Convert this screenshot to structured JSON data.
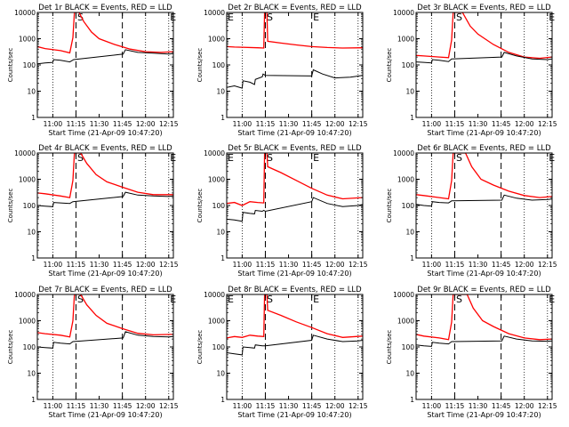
{
  "chart_data": {
    "type": "line",
    "shared": {
      "xlabel": "Start Time (21-Apr-09 10:47:20)",
      "ylabel": "Counts/sec",
      "xticks": [
        "11:00",
        "11:15",
        "11:30",
        "11:45",
        "12:00",
        "12:15"
      ],
      "yticks": [
        "1",
        "10",
        "100",
        "1000",
        "10000"
      ],
      "ylim": [
        1,
        10000
      ],
      "yscale": "log",
      "xlim_minutes": [
        -10,
        78
      ],
      "vertical_lines": [
        {
          "t": 0,
          "style": "dotted"
        },
        {
          "t": 15,
          "style": "dashed",
          "label": "S"
        },
        {
          "t": 45,
          "style": "dashed",
          "label": "E"
        },
        {
          "t": 60,
          "style": "dotted"
        },
        {
          "t": 75,
          "style": "dotted"
        }
      ],
      "colors": {
        "events": "#000000",
        "lld": "#ff0000"
      }
    },
    "panels": [
      {
        "title": "Det 1r BLACK = Events, RED = LLD",
        "markers": [
          "S",
          "E"
        ],
        "events": [
          {
            "t": -10,
            "v": 110
          },
          {
            "t": -5,
            "v": 120
          },
          {
            "t": 0,
            "v": 125
          },
          {
            "t": 0.5,
            "v": 160
          },
          {
            "t": 5,
            "v": 150
          },
          {
            "t": 11,
            "v": 130
          },
          {
            "t": 13.5,
            "v": 160
          },
          {
            "t": 45.5,
            "v": 260
          },
          {
            "t": 47,
            "v": 380
          },
          {
            "t": 55,
            "v": 300
          },
          {
            "t": 65,
            "v": 280
          },
          {
            "t": 75,
            "v": 260
          },
          {
            "t": 78,
            "v": 270
          }
        ],
        "lld": [
          {
            "t": -10,
            "v": 500
          },
          {
            "t": -5,
            "v": 420
          },
          {
            "t": 5,
            "v": 350
          },
          {
            "t": 11,
            "v": 290
          },
          {
            "t": 13,
            "v": 1100
          },
          {
            "t": 14,
            "v": 10000
          },
          {
            "t": 17,
            "v": 10000
          },
          {
            "t": 20,
            "v": 4500
          },
          {
            "t": 25,
            "v": 1800
          },
          {
            "t": 30,
            "v": 1000
          },
          {
            "t": 40,
            "v": 600
          },
          {
            "t": 50,
            "v": 400
          },
          {
            "t": 60,
            "v": 320
          },
          {
            "t": 70,
            "v": 300
          },
          {
            "t": 78,
            "v": 320
          }
        ]
      },
      {
        "title": "Det 2r BLACK = Events, RED = LLD",
        "markers": [
          "E",
          "S",
          "E"
        ],
        "events": [
          {
            "t": -10,
            "v": 14
          },
          {
            "t": -5,
            "v": 16
          },
          {
            "t": 0,
            "v": 13
          },
          {
            "t": 0.5,
            "v": 25
          },
          {
            "t": 5,
            "v": 22
          },
          {
            "t": 8,
            "v": 18
          },
          {
            "t": 8.5,
            "v": 28
          },
          {
            "t": 13,
            "v": 35
          },
          {
            "t": 13.5,
            "v": 45
          },
          {
            "t": 15,
            "v": 40
          },
          {
            "t": 45,
            "v": 38
          },
          {
            "t": 46,
            "v": 65
          },
          {
            "t": 52,
            "v": 45
          },
          {
            "t": 60,
            "v": 32
          },
          {
            "t": 70,
            "v": 34
          },
          {
            "t": 78,
            "v": 40
          }
        ],
        "lld": [
          {
            "t": -10,
            "v": 500
          },
          {
            "t": -5,
            "v": 480
          },
          {
            "t": 10,
            "v": 450
          },
          {
            "t": 14,
            "v": 440
          },
          {
            "t": 14.5,
            "v": 10000
          },
          {
            "t": 16,
            "v": 10000
          },
          {
            "t": 16.5,
            "v": 800
          },
          {
            "t": 25,
            "v": 680
          },
          {
            "t": 35,
            "v": 580
          },
          {
            "t": 45,
            "v": 500
          },
          {
            "t": 55,
            "v": 460
          },
          {
            "t": 65,
            "v": 440
          },
          {
            "t": 78,
            "v": 450
          }
        ]
      },
      {
        "title": "Det 3r BLACK = Events, RED = LLD",
        "markers": [
          "S",
          "E"
        ],
        "events": [
          {
            "t": -10,
            "v": 130
          },
          {
            "t": -5,
            "v": 125
          },
          {
            "t": 0,
            "v": 120
          },
          {
            "t": 0.5,
            "v": 160
          },
          {
            "t": 5,
            "v": 150
          },
          {
            "t": 11,
            "v": 135
          },
          {
            "t": 13,
            "v": 170
          },
          {
            "t": 45.5,
            "v": 200
          },
          {
            "t": 47,
            "v": 300
          },
          {
            "t": 55,
            "v": 220
          },
          {
            "t": 65,
            "v": 170
          },
          {
            "t": 75,
            "v": 160
          },
          {
            "t": 78,
            "v": 170
          }
        ],
        "lld": [
          {
            "t": -10,
            "v": 230
          },
          {
            "t": -5,
            "v": 220
          },
          {
            "t": 5,
            "v": 200
          },
          {
            "t": 11,
            "v": 190
          },
          {
            "t": 13,
            "v": 900
          },
          {
            "t": 14,
            "v": 10000
          },
          {
            "t": 20,
            "v": 10000
          },
          {
            "t": 25,
            "v": 3000
          },
          {
            "t": 30,
            "v": 1500
          },
          {
            "t": 40,
            "v": 600
          },
          {
            "t": 50,
            "v": 300
          },
          {
            "t": 60,
            "v": 200
          },
          {
            "t": 70,
            "v": 180
          },
          {
            "t": 78,
            "v": 200
          }
        ]
      },
      {
        "title": "Det 4r BLACK = Events, RED = LLD",
        "markers": [
          "S",
          "E"
        ],
        "events": [
          {
            "t": -10,
            "v": 100
          },
          {
            "t": -5,
            "v": 95
          },
          {
            "t": 0,
            "v": 90
          },
          {
            "t": 0.5,
            "v": 130
          },
          {
            "t": 5,
            "v": 125
          },
          {
            "t": 11,
            "v": 120
          },
          {
            "t": 13,
            "v": 140
          },
          {
            "t": 45.5,
            "v": 220
          },
          {
            "t": 47,
            "v": 320
          },
          {
            "t": 55,
            "v": 250
          },
          {
            "t": 65,
            "v": 230
          },
          {
            "t": 75,
            "v": 220
          },
          {
            "t": 78,
            "v": 230
          }
        ],
        "lld": [
          {
            "t": -10,
            "v": 300
          },
          {
            "t": -5,
            "v": 280
          },
          {
            "t": 5,
            "v": 230
          },
          {
            "t": 11,
            "v": 200
          },
          {
            "t": 13,
            "v": 900
          },
          {
            "t": 14,
            "v": 10000
          },
          {
            "t": 18,
            "v": 10000
          },
          {
            "t": 22,
            "v": 4000
          },
          {
            "t": 28,
            "v": 1500
          },
          {
            "t": 35,
            "v": 800
          },
          {
            "t": 45,
            "v": 500
          },
          {
            "t": 55,
            "v": 320
          },
          {
            "t": 65,
            "v": 260
          },
          {
            "t": 78,
            "v": 260
          }
        ]
      },
      {
        "title": "Det 5r BLACK = Events, RED = LLD",
        "markers": [
          "E",
          "S",
          "E"
        ],
        "events": [
          {
            "t": -10,
            "v": 30
          },
          {
            "t": -5,
            "v": 28
          },
          {
            "t": 0,
            "v": 25
          },
          {
            "t": 0.5,
            "v": 55
          },
          {
            "t": 5,
            "v": 50
          },
          {
            "t": 8,
            "v": 48
          },
          {
            "t": 8.5,
            "v": 65
          },
          {
            "t": 13,
            "v": 60
          },
          {
            "t": 14,
            "v": 65
          },
          {
            "t": 15,
            "v": 60
          },
          {
            "t": 45,
            "v": 140
          },
          {
            "t": 46,
            "v": 200
          },
          {
            "t": 55,
            "v": 120
          },
          {
            "t": 65,
            "v": 90
          },
          {
            "t": 75,
            "v": 100
          },
          {
            "t": 78,
            "v": 110
          }
        ],
        "lld": [
          {
            "t": -10,
            "v": 120
          },
          {
            "t": -5,
            "v": 130
          },
          {
            "t": 0,
            "v": 100
          },
          {
            "t": 5,
            "v": 140
          },
          {
            "t": 10,
            "v": 130
          },
          {
            "t": 14,
            "v": 125
          },
          {
            "t": 14.5,
            "v": 10000
          },
          {
            "t": 16,
            "v": 10000
          },
          {
            "t": 16.5,
            "v": 3000
          },
          {
            "t": 25,
            "v": 1800
          },
          {
            "t": 35,
            "v": 900
          },
          {
            "t": 45,
            "v": 450
          },
          {
            "t": 55,
            "v": 250
          },
          {
            "t": 65,
            "v": 180
          },
          {
            "t": 78,
            "v": 200
          }
        ]
      },
      {
        "title": "Det 6r BLACK = Events, RED = LLD",
        "markers": [
          "S",
          "E"
        ],
        "events": [
          {
            "t": -10,
            "v": 110
          },
          {
            "t": -5,
            "v": 100
          },
          {
            "t": 0,
            "v": 95
          },
          {
            "t": 0.5,
            "v": 140
          },
          {
            "t": 5,
            "v": 130
          },
          {
            "t": 11,
            "v": 125
          },
          {
            "t": 13,
            "v": 150
          },
          {
            "t": 45.5,
            "v": 160
          },
          {
            "t": 47,
            "v": 250
          },
          {
            "t": 55,
            "v": 190
          },
          {
            "t": 65,
            "v": 160
          },
          {
            "t": 75,
            "v": 170
          },
          {
            "t": 78,
            "v": 175
          }
        ],
        "lld": [
          {
            "t": -10,
            "v": 260
          },
          {
            "t": -5,
            "v": 240
          },
          {
            "t": 5,
            "v": 200
          },
          {
            "t": 11,
            "v": 180
          },
          {
            "t": 13,
            "v": 900
          },
          {
            "t": 14,
            "v": 10000
          },
          {
            "t": 22,
            "v": 10000
          },
          {
            "t": 26,
            "v": 3000
          },
          {
            "t": 32,
            "v": 1000
          },
          {
            "t": 40,
            "v": 600
          },
          {
            "t": 50,
            "v": 350
          },
          {
            "t": 60,
            "v": 240
          },
          {
            "t": 70,
            "v": 200
          },
          {
            "t": 78,
            "v": 220
          }
        ]
      },
      {
        "title": "Det 7r BLACK = Events, RED = LLD",
        "markers": [
          "S",
          "E"
        ],
        "events": [
          {
            "t": -10,
            "v": 100
          },
          {
            "t": -5,
            "v": 95
          },
          {
            "t": 0,
            "v": 90
          },
          {
            "t": 0.5,
            "v": 150
          },
          {
            "t": 5,
            "v": 140
          },
          {
            "t": 11,
            "v": 130
          },
          {
            "t": 13,
            "v": 160
          },
          {
            "t": 45.5,
            "v": 220
          },
          {
            "t": 47,
            "v": 380
          },
          {
            "t": 55,
            "v": 280
          },
          {
            "t": 65,
            "v": 250
          },
          {
            "t": 75,
            "v": 240
          },
          {
            "t": 78,
            "v": 250
          }
        ],
        "lld": [
          {
            "t": -10,
            "v": 350
          },
          {
            "t": -5,
            "v": 320
          },
          {
            "t": 5,
            "v": 280
          },
          {
            "t": 11,
            "v": 240
          },
          {
            "t": 13,
            "v": 1000
          },
          {
            "t": 14,
            "v": 10000
          },
          {
            "t": 18,
            "v": 10000
          },
          {
            "t": 22,
            "v": 4000
          },
          {
            "t": 28,
            "v": 1600
          },
          {
            "t": 35,
            "v": 800
          },
          {
            "t": 45,
            "v": 500
          },
          {
            "t": 55,
            "v": 330
          },
          {
            "t": 65,
            "v": 290
          },
          {
            "t": 78,
            "v": 300
          }
        ]
      },
      {
        "title": "Det 8r BLACK = Events, RED = LLD",
        "markers": [
          "E",
          "S",
          "E"
        ],
        "events": [
          {
            "t": -10,
            "v": 60
          },
          {
            "t": -5,
            "v": 55
          },
          {
            "t": 0,
            "v": 50
          },
          {
            "t": 0.5,
            "v": 100
          },
          {
            "t": 5,
            "v": 95
          },
          {
            "t": 8,
            "v": 90
          },
          {
            "t": 8.5,
            "v": 120
          },
          {
            "t": 13,
            "v": 110
          },
          {
            "t": 15,
            "v": 110
          },
          {
            "t": 45,
            "v": 180
          },
          {
            "t": 46,
            "v": 280
          },
          {
            "t": 55,
            "v": 200
          },
          {
            "t": 65,
            "v": 160
          },
          {
            "t": 75,
            "v": 170
          },
          {
            "t": 78,
            "v": 180
          }
        ],
        "lld": [
          {
            "t": -10,
            "v": 220
          },
          {
            "t": -5,
            "v": 250
          },
          {
            "t": 0,
            "v": 230
          },
          {
            "t": 5,
            "v": 280
          },
          {
            "t": 10,
            "v": 260
          },
          {
            "t": 14,
            "v": 250
          },
          {
            "t": 14.5,
            "v": 10000
          },
          {
            "t": 16,
            "v": 10000
          },
          {
            "t": 16.5,
            "v": 2500
          },
          {
            "t": 25,
            "v": 1600
          },
          {
            "t": 35,
            "v": 900
          },
          {
            "t": 45,
            "v": 550
          },
          {
            "t": 55,
            "v": 320
          },
          {
            "t": 65,
            "v": 230
          },
          {
            "t": 78,
            "v": 260
          }
        ]
      },
      {
        "title": "Det 9r BLACK = Events, RED = LLD",
        "markers": [
          "S",
          "E"
        ],
        "events": [
          {
            "t": -10,
            "v": 120
          },
          {
            "t": -5,
            "v": 110
          },
          {
            "t": 0,
            "v": 105
          },
          {
            "t": 0.5,
            "v": 150
          },
          {
            "t": 5,
            "v": 140
          },
          {
            "t": 11,
            "v": 130
          },
          {
            "t": 13,
            "v": 160
          },
          {
            "t": 45.5,
            "v": 170
          },
          {
            "t": 47,
            "v": 260
          },
          {
            "t": 55,
            "v": 200
          },
          {
            "t": 65,
            "v": 170
          },
          {
            "t": 75,
            "v": 165
          },
          {
            "t": 78,
            "v": 170
          }
        ],
        "lld": [
          {
            "t": -10,
            "v": 300
          },
          {
            "t": -5,
            "v": 260
          },
          {
            "t": 5,
            "v": 220
          },
          {
            "t": 11,
            "v": 190
          },
          {
            "t": 13,
            "v": 900
          },
          {
            "t": 14,
            "v": 10000
          },
          {
            "t": 23,
            "v": 10000
          },
          {
            "t": 27,
            "v": 3000
          },
          {
            "t": 33,
            "v": 1000
          },
          {
            "t": 40,
            "v": 600
          },
          {
            "t": 50,
            "v": 320
          },
          {
            "t": 60,
            "v": 220
          },
          {
            "t": 70,
            "v": 190
          },
          {
            "t": 78,
            "v": 200
          }
        ]
      }
    ]
  }
}
